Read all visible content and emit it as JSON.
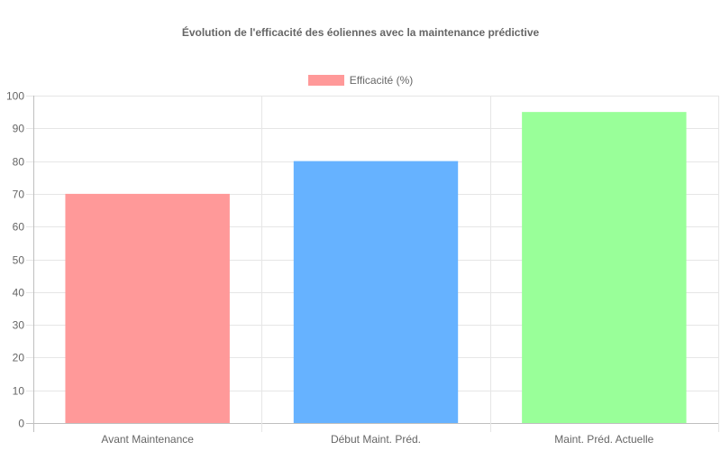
{
  "chart_data": {
    "type": "bar",
    "title": "Évolution de l'efficacité des éoliennes avec la maintenance prédictive",
    "categories": [
      "Avant Maintenance",
      "Début Maint. Préd.",
      "Maint. Préd. Actuelle"
    ],
    "series": [
      {
        "name": "Efficacité (%)",
        "values": [
          70,
          80,
          95
        ],
        "colors": [
          "#ff9999",
          "#66b2ff",
          "#99ff99"
        ]
      }
    ],
    "ylim": [
      0,
      100
    ],
    "ytick_step": 10,
    "grid": true,
    "legend_position": "top",
    "legend_swatch_color": "#ff9999"
  }
}
